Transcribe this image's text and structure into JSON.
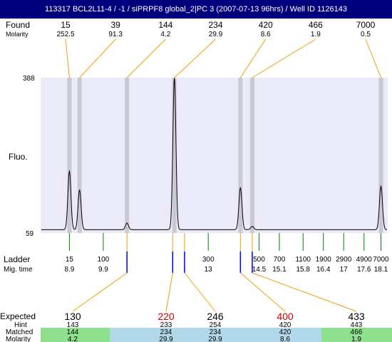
{
  "title": "113317  BCL2L11-4 / -1 / siPRPF8 global_2|PC 3 (2007-07-13 96hrs) / Well ID 1126143",
  "colors": {
    "title_bg": "#00007f",
    "plot_bg": "#eaeaf8",
    "trace": "#000000",
    "peak_band": "#c9c9d4",
    "connector": "#f0a000",
    "ladder_tick": "#008000",
    "expected_tick": "#0000d0",
    "expected_mismatch": "#d00000",
    "matched_green": "#8ee08e",
    "matched_blue": "#b0d8e8"
  },
  "labels": {
    "found": "Found",
    "molarity": "Molarity",
    "fluo": "Fluo.",
    "ladder": "Ladder",
    "mig_time": "Mig. time",
    "expected": "Expected",
    "hint": "Hint",
    "matched": "Matched",
    "molarity_bottom": "Molarity"
  },
  "chart_data": {
    "type": "line",
    "xlabel": "Mig. time",
    "ylabel": "Fluo.",
    "x_range": [
      8.05,
      18.3
    ],
    "ylim": [
      59,
      388
    ],
    "y_ticks": [
      "388",
      "59"
    ],
    "found_peaks": [
      {
        "size": "15",
        "molarity": "252.5",
        "time": 8.9,
        "height": 190
      },
      {
        "size": "39",
        "molarity": "91.3",
        "time": 9.2,
        "height": 150
      },
      {
        "size": "144",
        "molarity": "4.2",
        "time": 10.6,
        "height": 80
      },
      {
        "size": "234",
        "molarity": "29.9",
        "time": 12.0,
        "height": 388
      },
      {
        "size": "420",
        "molarity": "8.6",
        "time": 13.95,
        "height": 155
      },
      {
        "size": "466",
        "molarity": "1.9",
        "time": 14.3,
        "height": 73
      },
      {
        "size": "7000",
        "molarity": "0.5",
        "time": 18.1,
        "height": 158
      }
    ],
    "ladder": [
      {
        "size": "15",
        "time": "8.9"
      },
      {
        "size": "100",
        "time": "9.9"
      },
      {
        "size": "300",
        "time": "13"
      },
      {
        "size": "500",
        "time": "14.5"
      },
      {
        "size": "700",
        "time": "15.1"
      },
      {
        "size": "1100",
        "time": "15.8"
      },
      {
        "size": "1900",
        "time": "16.4"
      },
      {
        "size": "2900",
        "time": "17"
      },
      {
        "size": "4900",
        "time": "17.6"
      },
      {
        "size": "7000",
        "time": "18.1"
      }
    ],
    "expected": [
      {
        "expected": "130",
        "hint": "143",
        "matched": "144",
        "molarity": "4.2",
        "mismatch": false,
        "color": "green",
        "times": [
          10.6
        ]
      },
      {
        "expected": "220",
        "hint": "233",
        "matched": "234",
        "molarity": "29.9",
        "mismatch": true,
        "color": "blue",
        "times": [
          11.95
        ]
      },
      {
        "expected": "246",
        "hint": "254",
        "matched": "234",
        "molarity": "29.9",
        "mismatch": false,
        "color": "blue",
        "times": [
          12.3
        ]
      },
      {
        "expected": "400",
        "hint": "420",
        "matched": "420",
        "molarity": "8.6",
        "mismatch": true,
        "color": "blue",
        "times": [
          13.95
        ]
      },
      {
        "expected": "433",
        "hint": "443",
        "matched": "466",
        "molarity": "1.9",
        "mismatch": false,
        "color": "green",
        "times": [
          14.3
        ]
      }
    ]
  }
}
